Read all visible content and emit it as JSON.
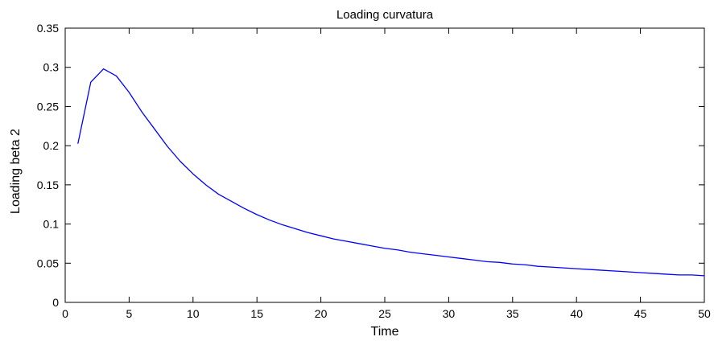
{
  "chart_data": {
    "type": "line",
    "title": "Loading curvatura",
    "xlabel": "Time",
    "ylabel": "Loading beta 2",
    "xlim": [
      0,
      50
    ],
    "ylim": [
      0,
      0.35
    ],
    "xticks": [
      0,
      5,
      10,
      15,
      20,
      25,
      30,
      35,
      40,
      45,
      50
    ],
    "yticks": [
      0,
      0.05,
      0.1,
      0.15,
      0.2,
      0.25,
      0.3,
      0.35
    ],
    "xtick_labels": [
      "0",
      "5",
      "10",
      "15",
      "20",
      "25",
      "30",
      "35",
      "40",
      "45",
      "50"
    ],
    "ytick_labels": [
      "0",
      "0.05",
      "0.1",
      "0.15",
      "0.2",
      "0.25",
      "0.3",
      "0.35"
    ],
    "grid": false,
    "legend": false,
    "series": [
      {
        "color": "#0000ff",
        "x": [
          1,
          2,
          3,
          4,
          5,
          6,
          7,
          8,
          9,
          10,
          11,
          12,
          13,
          14,
          15,
          16,
          17,
          18,
          19,
          20,
          21,
          22,
          23,
          24,
          25,
          26,
          27,
          28,
          29,
          30,
          31,
          32,
          33,
          34,
          35,
          36,
          37,
          38,
          39,
          40,
          41,
          42,
          43,
          44,
          45,
          46,
          47,
          48,
          49,
          50
        ],
        "y": [
          0.203,
          0.281,
          0.298,
          0.289,
          0.268,
          0.243,
          0.221,
          0.199,
          0.18,
          0.164,
          0.15,
          0.138,
          0.129,
          0.12,
          0.112,
          0.105,
          0.099,
          0.094,
          0.089,
          0.085,
          0.081,
          0.078,
          0.075,
          0.072,
          0.069,
          0.067,
          0.064,
          0.062,
          0.06,
          0.058,
          0.056,
          0.054,
          0.052,
          0.051,
          0.049,
          0.048,
          0.046,
          0.045,
          0.044,
          0.043,
          0.042,
          0.041,
          0.04,
          0.039,
          0.038,
          0.037,
          0.036,
          0.035,
          0.035,
          0.034
        ]
      }
    ]
  }
}
